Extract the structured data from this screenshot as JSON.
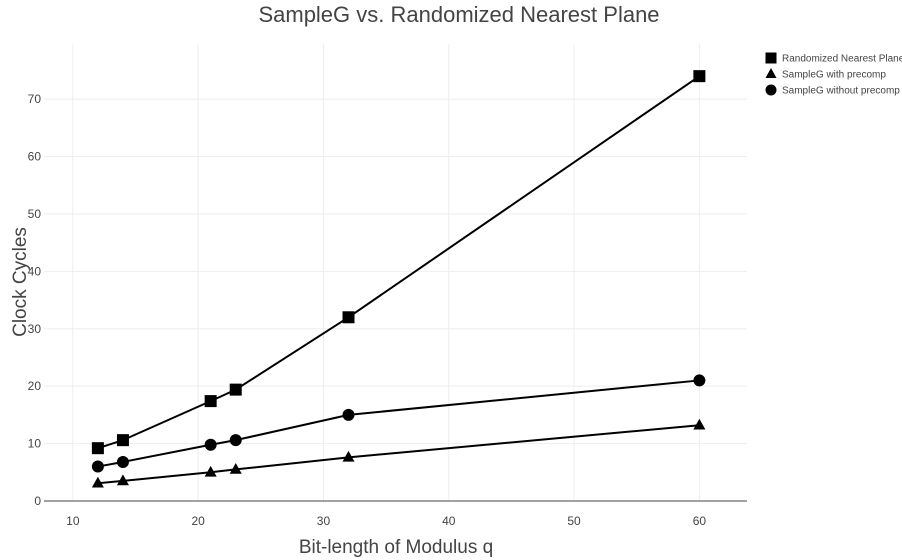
{
  "chart_data": {
    "type": "line",
    "title": "SampleG vs. Randomized Nearest Plane",
    "xlabel": "Bit-length of Modulus q",
    "ylabel": "Clock Cycles",
    "xlim": [
      7.7,
      63.8
    ],
    "ylim": [
      0,
      79.6
    ],
    "xticks": [
      10,
      20,
      30,
      40,
      50,
      60
    ],
    "yticks": [
      0,
      10,
      20,
      30,
      40,
      50,
      60,
      70
    ],
    "grid": true,
    "legend_position": "top-right",
    "x": [
      12,
      14,
      21,
      23,
      32,
      60
    ],
    "series": [
      {
        "name": "Randomized Nearest Plane",
        "marker": "square",
        "color": "#000000",
        "values": [
          9.2,
          10.6,
          17.4,
          19.4,
          32.0,
          74.0
        ]
      },
      {
        "name": "SampleG with precomp",
        "marker": "triangle",
        "color": "#000000",
        "values": [
          3.1,
          3.5,
          5.0,
          5.5,
          7.6,
          13.2
        ]
      },
      {
        "name": "SampleG without precomp",
        "marker": "circle",
        "color": "#000000",
        "values": [
          6.0,
          6.8,
          9.8,
          10.6,
          15.0,
          21.0
        ]
      }
    ]
  }
}
